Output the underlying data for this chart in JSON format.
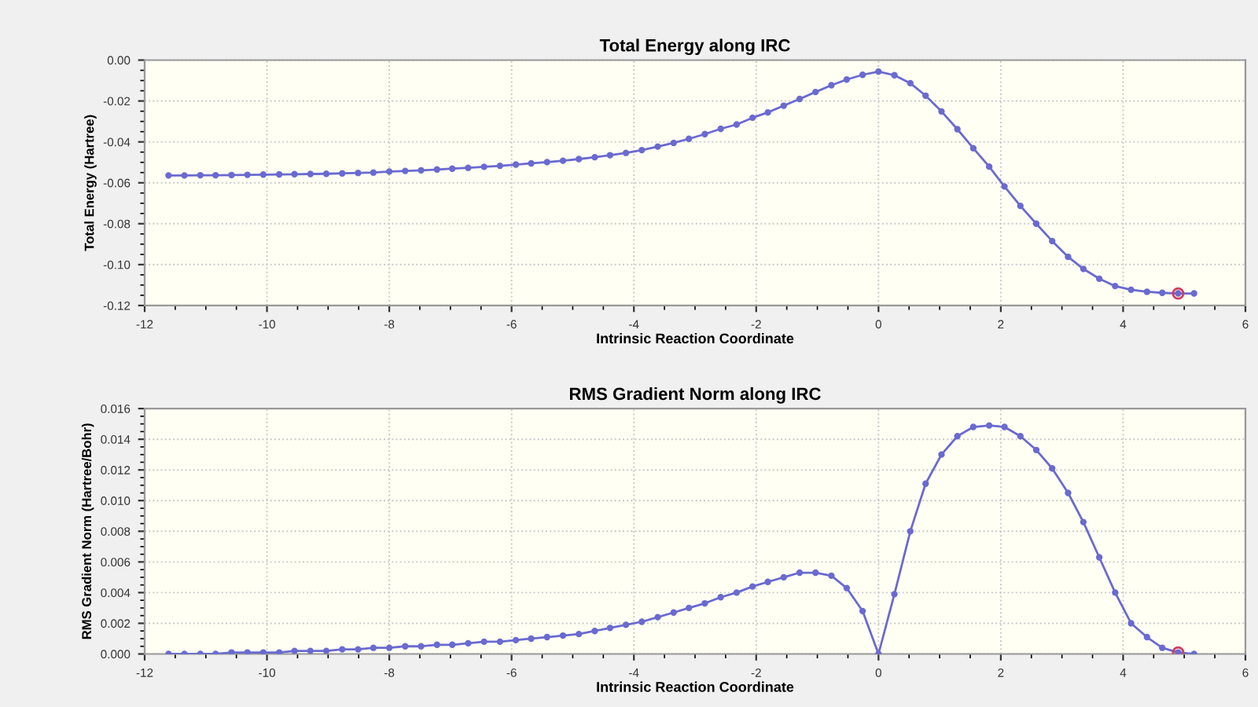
{
  "chart_data": [
    {
      "type": "line",
      "title": "Total Energy along IRC",
      "xlabel": "Intrinsic Reaction Coordinate",
      "ylabel": "Total Energy (Hartree)",
      "x": [
        -11.61,
        -11.35,
        -11.09,
        -10.84,
        -10.58,
        -10.32,
        -10.06,
        -9.8,
        -9.55,
        -9.29,
        -9.03,
        -8.77,
        -8.51,
        -8.26,
        -8.0,
        -7.74,
        -7.48,
        -7.22,
        -6.97,
        -6.71,
        -6.45,
        -6.19,
        -5.93,
        -5.68,
        -5.42,
        -5.16,
        -4.9,
        -4.64,
        -4.39,
        -4.13,
        -3.87,
        -3.61,
        -3.35,
        -3.1,
        -2.84,
        -2.58,
        -2.32,
        -2.06,
        -1.81,
        -1.55,
        -1.29,
        -1.03,
        -0.77,
        -0.52,
        -0.26,
        0,
        0.26,
        0.52,
        0.77,
        1.03,
        1.29,
        1.55,
        1.81,
        2.06,
        2.32,
        2.58,
        2.84,
        3.1,
        3.35,
        3.61,
        3.87,
        4.13,
        4.39,
        4.64,
        4.9,
        5.16
      ],
      "series": [
        {
          "color": "#6a6ad0",
          "marker": "circle",
          "values": [
            -0.0564,
            -0.0564,
            -0.0563,
            -0.0563,
            -0.0562,
            -0.0561,
            -0.056,
            -0.0559,
            -0.0558,
            -0.0557,
            -0.0556,
            -0.0554,
            -0.0552,
            -0.055,
            -0.0545,
            -0.0542,
            -0.0539,
            -0.0535,
            -0.0531,
            -0.0527,
            -0.0522,
            -0.0517,
            -0.0511,
            -0.0505,
            -0.0499,
            -0.0492,
            -0.0484,
            -0.0475,
            -0.0465,
            -0.0454,
            -0.044,
            -0.0423,
            -0.0405,
            -0.0385,
            -0.0362,
            -0.0336,
            -0.0315,
            -0.0282,
            -0.0256,
            -0.0223,
            -0.019,
            -0.0156,
            -0.0123,
            -0.0095,
            -0.0072,
            -0.0056,
            -0.0074,
            -0.0113,
            -0.0174,
            -0.0251,
            -0.0338,
            -0.0431,
            -0.0521,
            -0.0618,
            -0.0713,
            -0.08,
            -0.0885,
            -0.0962,
            -0.1021,
            -0.1069,
            -0.1105,
            -0.1123,
            -0.1133,
            -0.1138,
            -0.1141,
            -0.1141
          ]
        },
        {
          "type": "scatter",
          "x": [
            4.9
          ],
          "color": "#d04060",
          "marker": "circle",
          "values": [
            -0.1141
          ]
        }
      ],
      "xlim": [
        -12,
        6
      ],
      "xticks": [
        -12,
        -10,
        -8,
        -6,
        -4,
        -2,
        0,
        2,
        4,
        6
      ],
      "ylim": [
        -0.12,
        0.0
      ],
      "yticks": [
        {
          "value": -0.12,
          "label": "-0.12"
        },
        {
          "value": -0.1,
          "label": "-0.10"
        },
        {
          "value": -0.08,
          "label": "-0.08"
        },
        {
          "value": -0.06,
          "label": "-0.06"
        },
        {
          "value": -0.04,
          "label": "-0.04"
        },
        {
          "value": -0.02,
          "label": "-0.02"
        },
        {
          "value": 0.0,
          "label": "0.00"
        }
      ],
      "grid": true
    },
    {
      "type": "line",
      "title": "RMS Gradient Norm along IRC",
      "xlabel": "Intrinsic Reaction Coordinate",
      "ylabel": "RMS Gradient Norm (Hartree/Bohr)",
      "x": [
        -11.61,
        -11.35,
        -11.09,
        -10.84,
        -10.58,
        -10.32,
        -10.06,
        -9.8,
        -9.55,
        -9.29,
        -9.03,
        -8.77,
        -8.51,
        -8.26,
        -8.0,
        -7.74,
        -7.48,
        -7.22,
        -6.97,
        -6.71,
        -6.45,
        -6.19,
        -5.93,
        -5.68,
        -5.42,
        -5.16,
        -4.9,
        -4.64,
        -4.39,
        -4.13,
        -3.87,
        -3.61,
        -3.35,
        -3.1,
        -2.84,
        -2.58,
        -2.32,
        -2.06,
        -1.81,
        -1.55,
        -1.29,
        -1.03,
        -0.77,
        -0.52,
        -0.26,
        0,
        0.26,
        0.52,
        0.77,
        1.03,
        1.29,
        1.55,
        1.81,
        2.06,
        2.32,
        2.58,
        2.84,
        3.1,
        3.35,
        3.61,
        3.87,
        4.13,
        4.39,
        4.64,
        4.9,
        5.16
      ],
      "series": [
        {
          "color": "#6a6ad0",
          "marker": "circle",
          "values": [
            0.0,
            0.0,
            0.0,
            0.0,
            0.0001,
            0.0001,
            0.0001,
            0.0001,
            0.0002,
            0.0002,
            0.0002,
            0.0003,
            0.0003,
            0.0004,
            0.0004,
            0.0005,
            0.0005,
            0.0006,
            0.0006,
            0.0007,
            0.0008,
            0.0008,
            0.0009,
            0.001,
            0.0011,
            0.0012,
            0.0013,
            0.0015,
            0.0017,
            0.0019,
            0.0021,
            0.0024,
            0.0027,
            0.003,
            0.0033,
            0.0037,
            0.004,
            0.0044,
            0.0047,
            0.005,
            0.0053,
            0.0053,
            0.0051,
            0.0043,
            0.0028,
            0.0,
            0.0039,
            0.008,
            0.0111,
            0.013,
            0.0142,
            0.0148,
            0.0149,
            0.0148,
            0.0142,
            0.0133,
            0.0121,
            0.0105,
            0.0086,
            0.0063,
            0.004,
            0.002,
            0.0011,
            0.0004,
            0.0001,
            0.0
          ]
        },
        {
          "type": "scatter",
          "x": [
            4.9
          ],
          "color": "#d04060",
          "marker": "circle",
          "values": [
            0.0001
          ]
        }
      ],
      "xlim": [
        -12,
        6
      ],
      "xticks": [
        -12,
        -10,
        -8,
        -6,
        -4,
        -2,
        0,
        2,
        4,
        6
      ],
      "ylim": [
        0.0,
        0.016
      ],
      "yticks": [
        {
          "value": 0.0,
          "label": "0.000"
        },
        {
          "value": 0.002,
          "label": "0.002"
        },
        {
          "value": 0.004,
          "label": "0.004"
        },
        {
          "value": 0.006,
          "label": "0.006"
        },
        {
          "value": 0.008,
          "label": "0.008"
        },
        {
          "value": 0.01,
          "label": "0.010"
        },
        {
          "value": 0.012,
          "label": "0.012"
        },
        {
          "value": 0.014,
          "label": "0.014"
        },
        {
          "value": 0.016,
          "label": "0.016"
        }
      ],
      "grid": true
    }
  ]
}
